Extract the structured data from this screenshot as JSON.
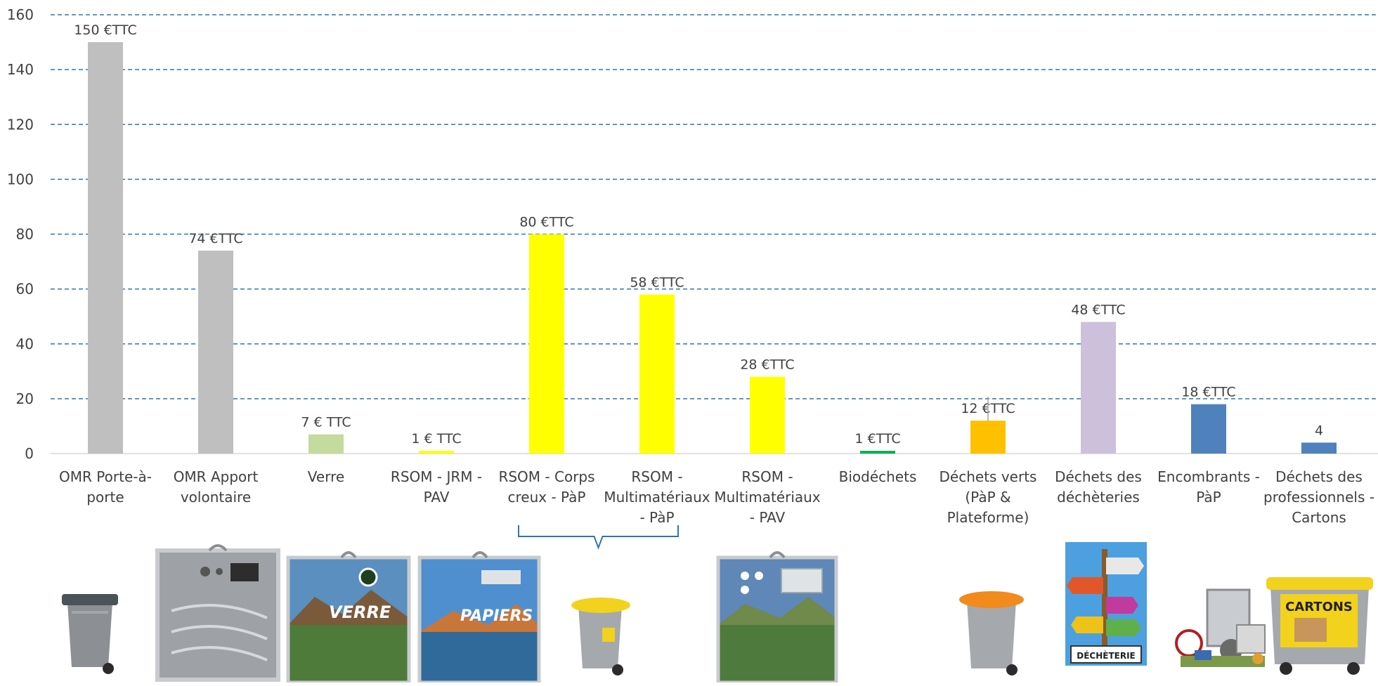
{
  "chart_data": {
    "type": "bar",
    "title": "",
    "xlabel": "",
    "ylabel": "",
    "ylim": [
      0,
      160
    ],
    "yticks": [
      0,
      20,
      40,
      60,
      80,
      100,
      120,
      140,
      160
    ],
    "grid": "horizontal-dashed",
    "legend": "none",
    "categories": [
      [
        "OMR Porte-à-",
        "porte"
      ],
      [
        "OMR Apport",
        "volontaire"
      ],
      [
        "Verre"
      ],
      [
        "RSOM - JRM -",
        "PAV"
      ],
      [
        "RSOM - Corps",
        "creux - PàP"
      ],
      [
        "RSOM -",
        "Multimatériaux",
        "- PàP"
      ],
      [
        "RSOM -",
        "Multimatériaux",
        "- PAV"
      ],
      [
        "Biodéchets"
      ],
      [
        "Déchets verts",
        "(PàP &",
        "Plateforme)"
      ],
      [
        "Déchets des",
        "déchèteries"
      ],
      [
        "Encombrants -",
        "PàP"
      ],
      [
        "Déchets des",
        "professionnels -",
        "Cartons"
      ]
    ],
    "values": [
      150,
      74,
      7,
      1,
      80,
      58,
      28,
      1,
      12,
      48,
      18,
      4
    ],
    "data_labels": [
      "150 €TTC",
      "74 €TTC",
      "7 € TTC",
      "1 € TTC",
      "80 €TTC",
      "58  €TTC",
      "28 €TTC",
      "1 €TTC",
      "12 €TTC",
      "48 €TTC",
      "18 €TTC",
      "4"
    ],
    "colors": [
      "#bfbfbf",
      "#bfbfbf",
      "#c5da9d",
      "#ffff00",
      "#ffff00",
      "#ffff00",
      "#ffff00",
      "#00b050",
      "#ffc000",
      "#ccc0da",
      "#4f81bd",
      "#4f81bd"
    ],
    "grid_color": "#2e75b6",
    "bracket_color": "#2e75b6",
    "bracket_groups": [
      [
        4,
        5
      ]
    ]
  },
  "pictograms": [
    {
      "icon": "grey-wheelie-bin-dark-lid-icon",
      "after_category": 0
    },
    {
      "icon": "grey-voluntary-drop-container-icon",
      "after_category": 1
    },
    {
      "icon": "verre-drop-container-icon",
      "label": "VERRE",
      "after_category": 2
    },
    {
      "icon": "papiers-drop-container-icon",
      "label": "PAPIERS",
      "after_category": 3
    },
    {
      "icon": "grey-wheelie-bin-yellow-lid-icon",
      "after_category": 4
    },
    {
      "icon": "multimaterial-drop-container-icon",
      "after_category": 6
    },
    {
      "icon": "grey-wheelie-bin-orange-lid-icon",
      "after_category": 8
    },
    {
      "icon": "decheterie-signpost-icon",
      "label": "DÉCHÈTERIE",
      "after_category": 9
    },
    {
      "icon": "bulky-waste-pile-icon",
      "after_category": 10
    },
    {
      "icon": "cartons-wheelie-container-icon",
      "label": "CARTONS",
      "after_category": 11
    }
  ]
}
